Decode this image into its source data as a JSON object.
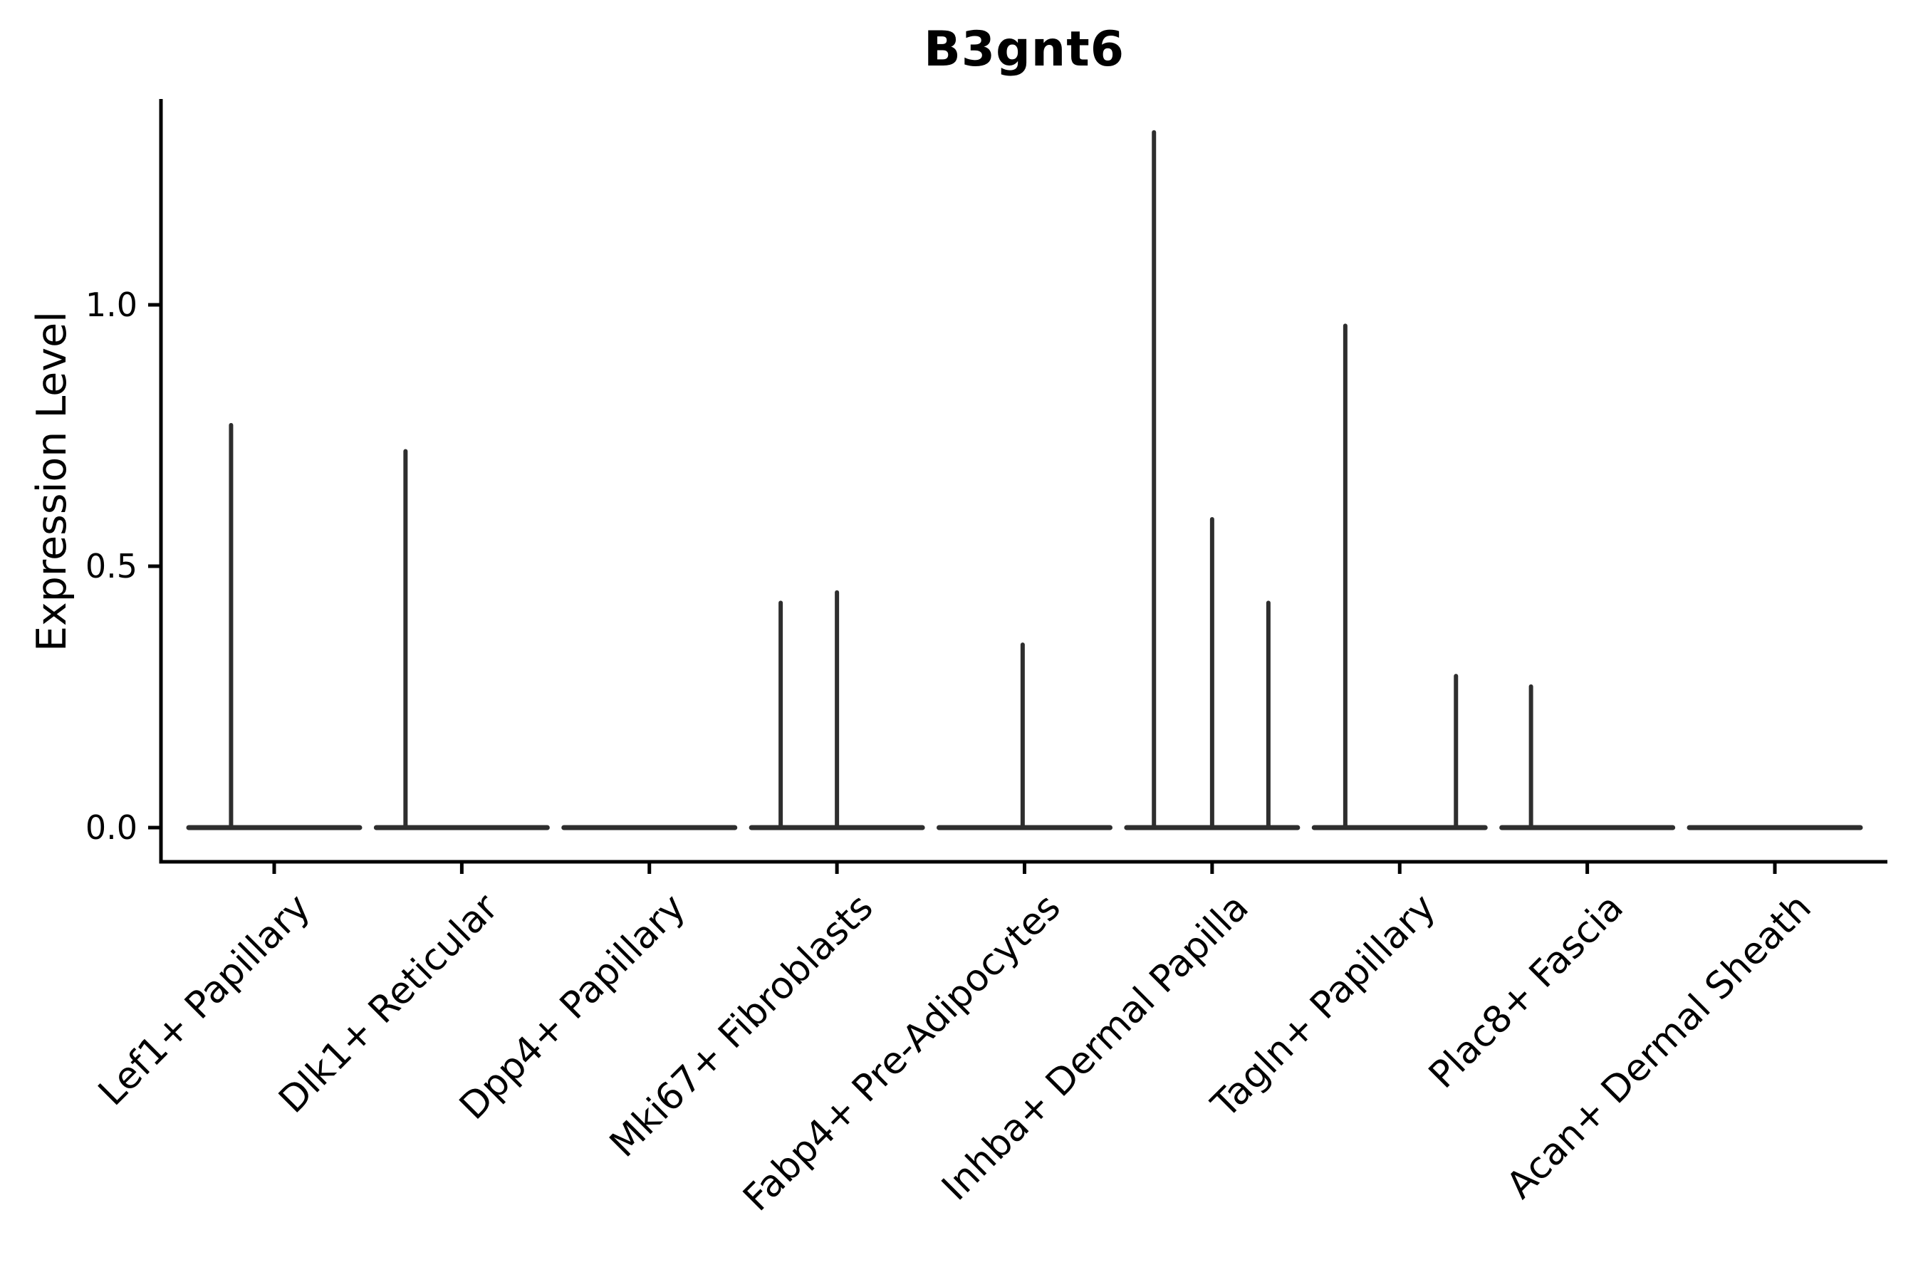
{
  "colors": {
    "axis": "#000000",
    "violin": "#2e2e2e",
    "background": "#ffffff"
  },
  "chart_data": {
    "type": "violin",
    "title": "B3gnt6",
    "xlabel": "",
    "ylabel": "Expression Level",
    "ylim": [
      -0.065,
      1.395
    ],
    "grid": false,
    "legend": "none",
    "yticks": [
      {
        "label": "0.0",
        "value": 0.0
      },
      {
        "label": "0.5",
        "value": 0.5
      },
      {
        "label": "1.0",
        "value": 1.0
      }
    ],
    "categories": [
      {
        "label": "Lef1+ Papillary",
        "baseline_value": 0,
        "spikes": [
          {
            "x_offset_frac": -0.23,
            "value": 0.77
          }
        ]
      },
      {
        "label": "Dlk1+ Reticular",
        "baseline_value": 0,
        "spikes": [
          {
            "x_offset_frac": -0.3,
            "value": 0.72
          }
        ]
      },
      {
        "label": "Dpp4+ Papillary",
        "baseline_value": 0,
        "spikes": []
      },
      {
        "label": "Mki67+ Fibroblasts",
        "baseline_value": 0,
        "spikes": [
          {
            "x_offset_frac": -0.3,
            "value": 0.43
          },
          {
            "x_offset_frac": 0.0,
            "value": 0.45
          }
        ]
      },
      {
        "label": "Fabp4+ Pre-Adipocytes",
        "baseline_value": 0,
        "spikes": [
          {
            "x_offset_frac": -0.01,
            "value": 0.35
          }
        ]
      },
      {
        "label": "Inhba+ Dermal Papilla",
        "baseline_value": 0,
        "spikes": [
          {
            "x_offset_frac": -0.31,
            "value": 1.33
          },
          {
            "x_offset_frac": 0.0,
            "value": 0.59
          },
          {
            "x_offset_frac": 0.3,
            "value": 0.43
          }
        ]
      },
      {
        "label": "Tagln+ Papillary",
        "baseline_value": 0,
        "spikes": [
          {
            "x_offset_frac": -0.29,
            "value": 0.96
          },
          {
            "x_offset_frac": 0.3,
            "value": 0.29
          }
        ]
      },
      {
        "label": "Plac8+ Fascia",
        "baseline_value": 0,
        "spikes": [
          {
            "x_offset_frac": -0.3,
            "value": 0.27
          }
        ]
      },
      {
        "label": "Acan+ Dermal Sheath",
        "baseline_value": 0,
        "spikes": []
      }
    ]
  }
}
